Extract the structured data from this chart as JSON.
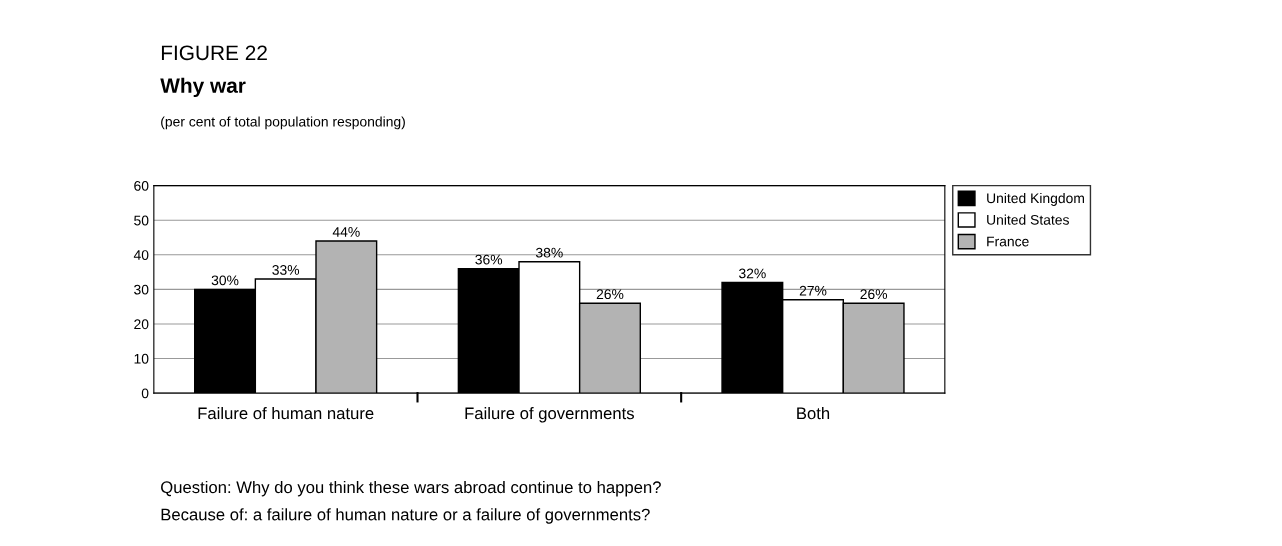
{
  "chart_data": {
    "type": "bar",
    "title": "FIGURE 22",
    "subtitle": "Why war",
    "annotations": [
      "(per cent of total population responding)",
      "Question: Why do you think these wars abroad continue to happen?",
      "Because of: a failure of human nature or a failure of governments?"
    ],
    "categories": [
      "Failure of human nature",
      "Failure of governments",
      "Both"
    ],
    "series": [
      {
        "name": "United Kingdom",
        "color": "#000000",
        "values": [
          30,
          36,
          32
        ],
        "value_labels": [
          "30%",
          "36%",
          "32%"
        ]
      },
      {
        "name": "United States",
        "color": "#ffffff",
        "values": [
          33,
          38,
          27
        ],
        "value_labels": [
          "33%",
          "38%",
          "27%"
        ]
      },
      {
        "name": "France",
        "color": "#b3b3b3",
        "values": [
          44,
          26,
          26
        ],
        "value_labels": [
          "44%",
          "26%",
          "26%"
        ]
      }
    ],
    "ylim": [
      0,
      60
    ],
    "yticks": [
      0,
      10,
      20,
      30,
      40,
      50,
      60
    ],
    "grid": "y",
    "legend": "right"
  }
}
